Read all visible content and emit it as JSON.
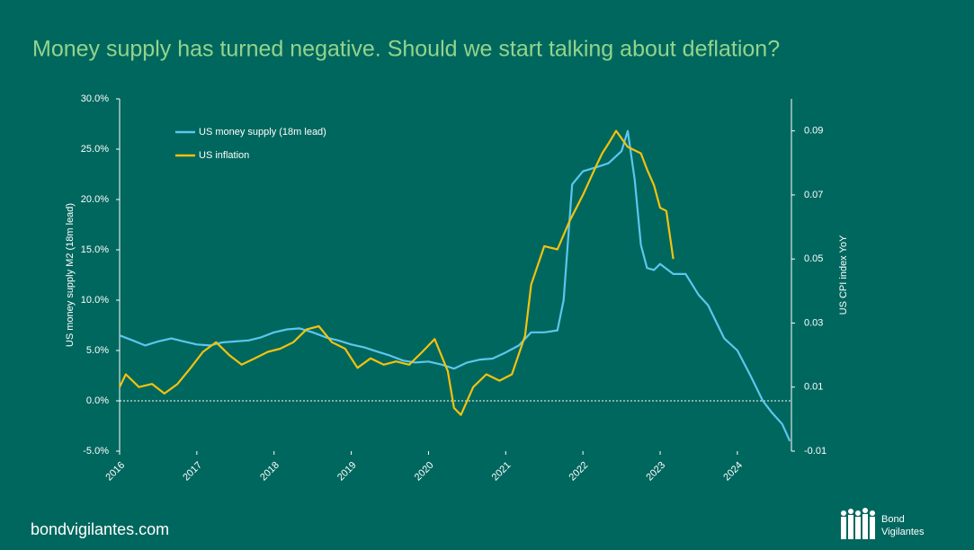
{
  "chart_data": {
    "type": "line",
    "title": "Money supply has turned negative. Should we start talking about deflation?",
    "ylabel": "US money supply M2 (18m lead)",
    "y2label": "US CPI index YoY",
    "xlim": [
      2016,
      2024.7
    ],
    "xticks": [
      2016,
      2017,
      2018,
      2019,
      2020,
      2021,
      2022,
      2023,
      2024
    ],
    "ylim": [
      -5,
      30
    ],
    "yticks": [
      {
        "value": -5,
        "label": "-5.0%"
      },
      {
        "value": 0,
        "label": "0.0%"
      },
      {
        "value": 5,
        "label": "5.0%"
      },
      {
        "value": 10,
        "label": "10.0%"
      },
      {
        "value": 15,
        "label": "15.0%"
      },
      {
        "value": 20,
        "label": "20.0%"
      },
      {
        "value": 25,
        "label": "25.0%"
      },
      {
        "value": 30,
        "label": "30.0%"
      }
    ],
    "y2lim": [
      -0.01,
      0.1
    ],
    "y2ticks": [
      -0.01,
      0.01,
      0.03,
      0.05,
      0.07,
      0.09
    ],
    "legend": "upper left",
    "series": [
      {
        "name": "US money supply (18m lead)",
        "color": "#5cc6ee",
        "x": [
          2016.0,
          2016.17,
          2016.33,
          2016.5,
          2016.67,
          2016.83,
          2017.0,
          2017.17,
          2017.33,
          2017.5,
          2017.67,
          2017.83,
          2018.0,
          2018.17,
          2018.33,
          2018.5,
          2018.67,
          2018.83,
          2019.0,
          2019.17,
          2019.33,
          2019.5,
          2019.67,
          2019.83,
          2020.0,
          2020.17,
          2020.33,
          2020.5,
          2020.67,
          2020.83,
          2021.0,
          2021.17,
          2021.33,
          2021.5,
          2021.67,
          2021.75,
          2021.86,
          2022.0,
          2022.17,
          2022.33,
          2022.5,
          2022.58,
          2022.67,
          2022.75,
          2022.83,
          2022.92,
          2023.0,
          2023.17,
          2023.33,
          2023.5,
          2023.62,
          2023.83,
          2024.0,
          2024.17,
          2024.33,
          2024.45,
          2024.58,
          2024.68
        ],
        "values": [
          6.5,
          6.0,
          5.5,
          5.9,
          6.2,
          5.9,
          5.6,
          5.5,
          5.8,
          5.9,
          6.0,
          6.3,
          6.8,
          7.1,
          7.2,
          6.8,
          6.3,
          6.0,
          5.6,
          5.3,
          4.9,
          4.5,
          4.0,
          3.8,
          3.9,
          3.6,
          3.2,
          3.8,
          4.1,
          4.2,
          4.8,
          5.5,
          6.8,
          6.8,
          7.0,
          10.0,
          21.5,
          22.8,
          23.2,
          23.6,
          24.8,
          26.8,
          22.0,
          15.5,
          13.2,
          13.0,
          13.6,
          12.6,
          12.6,
          10.5,
          9.5,
          6.2,
          5.0,
          2.5,
          0.0,
          -1.2,
          -2.3,
          -4.0
        ]
      },
      {
        "name": "US inflation",
        "color": "#f4c20d",
        "axis": "y2",
        "x": [
          2016.0,
          2016.08,
          2016.25,
          2016.42,
          2016.58,
          2016.75,
          2016.92,
          2017.08,
          2017.25,
          2017.42,
          2017.58,
          2017.75,
          2017.92,
          2018.08,
          2018.25,
          2018.42,
          2018.58,
          2018.75,
          2018.92,
          2019.08,
          2019.25,
          2019.42,
          2019.58,
          2019.75,
          2019.92,
          2020.08,
          2020.25,
          2020.33,
          2020.42,
          2020.58,
          2020.75,
          2020.92,
          2021.08,
          2021.25,
          2021.33,
          2021.5,
          2021.67,
          2021.83,
          2022.0,
          2022.17,
          2022.25,
          2022.33,
          2022.43,
          2022.58,
          2022.75,
          2022.83,
          2022.92,
          2023.0,
          2023.08,
          2023.17
        ],
        "values": [
          0.01,
          0.014,
          0.01,
          0.011,
          0.008,
          0.011,
          0.016,
          0.021,
          0.024,
          0.02,
          0.017,
          0.019,
          0.021,
          0.022,
          0.024,
          0.028,
          0.029,
          0.024,
          0.022,
          0.016,
          0.019,
          0.017,
          0.018,
          0.017,
          0.021,
          0.025,
          0.015,
          0.0035,
          0.0013,
          0.01,
          0.014,
          0.012,
          0.014,
          0.026,
          0.042,
          0.054,
          0.053,
          0.062,
          0.07,
          0.079,
          0.083,
          0.086,
          0.09,
          0.085,
          0.083,
          0.078,
          0.073,
          0.066,
          0.065,
          0.05
        ]
      }
    ]
  },
  "footer": "bondvigilantes.com",
  "logo": [
    "Bond",
    "Vigilantes"
  ]
}
